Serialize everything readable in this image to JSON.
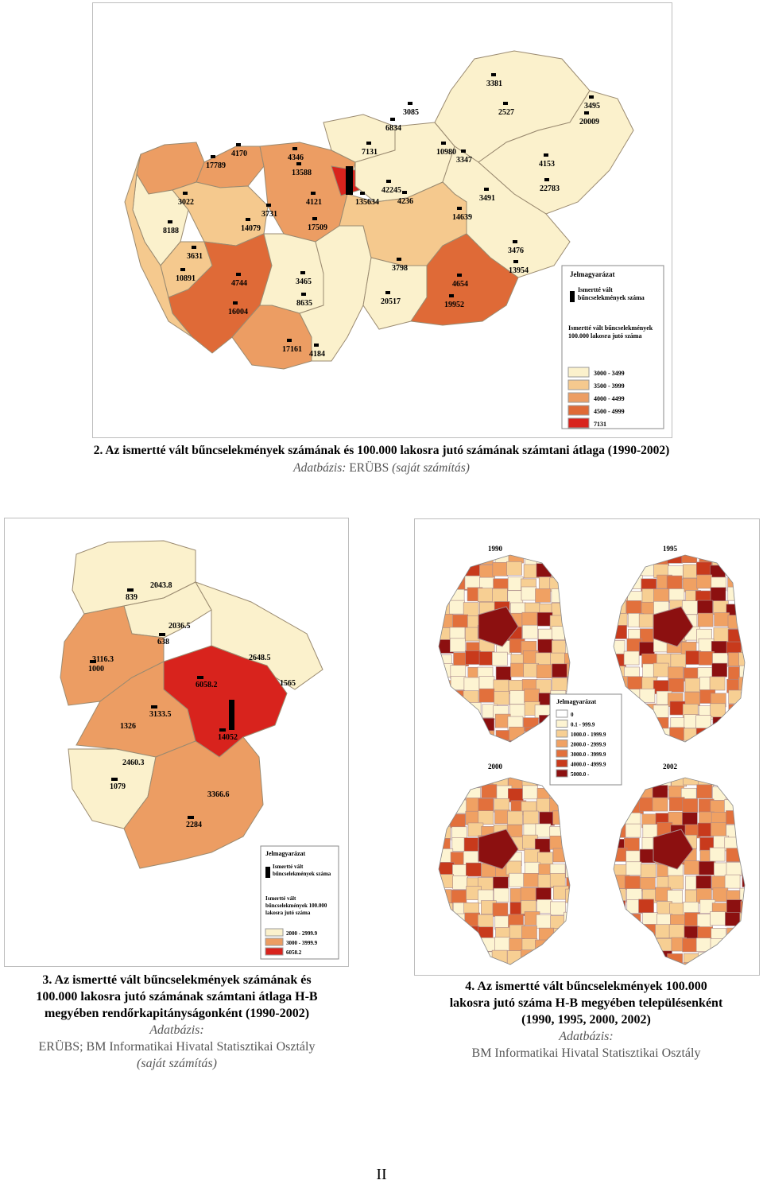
{
  "colors": {
    "c1": "#fbf1cc",
    "c2": "#f5c98e",
    "c3": "#ec9d63",
    "c4": "#df6a37",
    "c5": "#d8231d",
    "d0": "#ffffff",
    "d1": "#fdf4d2",
    "d2": "#f7cf93",
    "d3": "#f0a163",
    "d4": "#e2703c",
    "d5": "#c83a1c",
    "d6": "#8c1010"
  },
  "map2": {
    "labels": [
      "3381",
      "2527",
      "3495",
      "20009",
      "3085",
      "6834",
      "10980",
      "3347",
      "7131",
      "42245",
      "135634",
      "4236",
      "4170",
      "17789",
      "4346",
      "13588",
      "4121",
      "17509",
      "3731",
      "14079",
      "3022",
      "8188",
      "3631",
      "10891",
      "4744",
      "16004",
      "3465",
      "8635",
      "3798",
      "20517",
      "4654",
      "19952",
      "3491",
      "14639",
      "4153",
      "22783",
      "3476",
      "13954",
      "17161",
      "4184"
    ],
    "legend_title": "Jelmagyarázat",
    "legend_crime": "Ismertté vált bűncselekmények száma",
    "legend_rate": "Ismertté vált bűncselekmények 100.000 lakosra jutó száma",
    "legend_classes": [
      "3000 - 3499",
      "3500 - 3999",
      "4000 - 4499",
      "4500 - 4999",
      "7131"
    ]
  },
  "caption2": {
    "title": "2. Az ismertté vált bűncselekmények számának és 100.000 lakosra jutó számának számtani átlaga (1990-2002)",
    "source_label": "Adatbázis: ",
    "source": "ERÜBS",
    "source_note": " (saját számítás)"
  },
  "map3": {
    "labels": [
      "2043.8",
      "839",
      "2036.5",
      "638",
      "3116.3",
      "1000",
      "2648.5",
      "6058.2",
      "1565",
      "3133.5",
      "1326",
      "14052",
      "2460.3",
      "1079",
      "3366.6",
      "2284"
    ],
    "legend_title": "Jelmagyarázat",
    "legend_crime": "Ismertté vált bűncselekmények száma",
    "legend_rate": "Ismertté vált bűncselekmények 100.000 lakosra jutó száma",
    "legend_classes": [
      "2000 - 2999.9",
      "3000 - 3999.9",
      "6058.2"
    ]
  },
  "caption3": {
    "line1": "3. Az ismertté vált bűncselekmények számának és",
    "line2": "100.000 lakosra jutó számának számtani átlaga H-B",
    "line3": "megyében rendőrkapitányságonként (1990-2002)",
    "line4": "Adatbázis:",
    "line5": "ERÜBS; BM Informatikai Hivatal Statisztikai Osztály",
    "line6": "(saját számítás)"
  },
  "map4": {
    "years": [
      "1990",
      "1995",
      "2000",
      "2002"
    ],
    "legend_title": "Jelmagyarázat",
    "legend_classes": [
      "0",
      "0.1 - 999.9",
      "1000.0 - 1999.9",
      "2000.0 - 2999.9",
      "3000.0 - 3999.9",
      "4000.0 - 4999.9",
      "5000.0 -"
    ]
  },
  "caption4": {
    "line1": "4. Az ismertté vált bűncselekmények 100.000",
    "line2": "lakosra jutó száma H-B megyében településenként",
    "line3": "(1990, 1995, 2000, 2002)",
    "line4": "Adatbázis:",
    "line5": "BM Informatikai Hivatal Statisztikai Osztály"
  },
  "page_number": "II"
}
